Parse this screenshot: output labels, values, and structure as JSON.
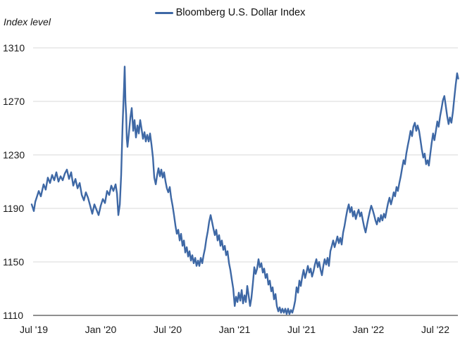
{
  "header": {
    "y_axis_title": "Index level"
  },
  "legend": {
    "label": "Bloomberg U.S. Dollar Index",
    "color": "#3e68a5"
  },
  "chart_data": {
    "type": "line",
    "title": "",
    "ylabel": "Index level",
    "xlabel": "",
    "legend_position": "top-center",
    "grid": "horizontal",
    "ylim": [
      1110,
      1310
    ],
    "xlim_months_since_jul_2019": [
      -0.3,
      38.2
    ],
    "y_ticks": [
      1310,
      1270,
      1230,
      1190,
      1150,
      1110
    ],
    "x_ticks": [
      {
        "m": 0,
        "label": "Jul '19"
      },
      {
        "m": 6,
        "label": "Jan '20"
      },
      {
        "m": 12,
        "label": "Jul '20"
      },
      {
        "m": 18,
        "label": "Jan '21"
      },
      {
        "m": 24,
        "label": "Jul '21"
      },
      {
        "m": 30,
        "label": "Jan '22"
      },
      {
        "m": 36,
        "label": "Jul '22"
      }
    ],
    "colors": {
      "line": "#3e68a5",
      "grid": "#d9d9d9",
      "axis": "#8f8f8f",
      "text": "#1a1a1a",
      "background": "#ffffff"
    },
    "series": [
      {
        "name": "Bloomberg U.S. Dollar Index",
        "color": "#3e68a5",
        "x_unit": "months since Jul 2019",
        "points": [
          [
            -0.19,
            1193
          ],
          [
            0.0,
            1188
          ],
          [
            0.13,
            1195
          ],
          [
            0.25,
            1198
          ],
          [
            0.44,
            1203
          ],
          [
            0.63,
            1199
          ],
          [
            0.88,
            1208
          ],
          [
            1.07,
            1204
          ],
          [
            1.26,
            1213
          ],
          [
            1.45,
            1209
          ],
          [
            1.64,
            1215
          ],
          [
            1.83,
            1211
          ],
          [
            2.02,
            1217
          ],
          [
            2.21,
            1210
          ],
          [
            2.4,
            1214
          ],
          [
            2.59,
            1211
          ],
          [
            2.78,
            1216
          ],
          [
            2.97,
            1219
          ],
          [
            3.16,
            1212
          ],
          [
            3.35,
            1217
          ],
          [
            3.54,
            1207
          ],
          [
            3.73,
            1212
          ],
          [
            3.92,
            1205
          ],
          [
            4.11,
            1209
          ],
          [
            4.3,
            1200
          ],
          [
            4.49,
            1196
          ],
          [
            4.67,
            1202
          ],
          [
            4.86,
            1198
          ],
          [
            5.05,
            1192
          ],
          [
            5.24,
            1186
          ],
          [
            5.43,
            1193
          ],
          [
            5.62,
            1189
          ],
          [
            5.81,
            1185
          ],
          [
            6.0,
            1192
          ],
          [
            6.19,
            1197
          ],
          [
            6.38,
            1194
          ],
          [
            6.57,
            1203
          ],
          [
            6.76,
            1200
          ],
          [
            6.95,
            1207
          ],
          [
            7.14,
            1203
          ],
          [
            7.33,
            1208
          ],
          [
            7.46,
            1201
          ],
          [
            7.58,
            1185
          ],
          [
            7.71,
            1193
          ],
          [
            7.83,
            1215
          ],
          [
            7.96,
            1252
          ],
          [
            8.09,
            1281
          ],
          [
            8.15,
            1296
          ],
          [
            8.22,
            1270
          ],
          [
            8.28,
            1260
          ],
          [
            8.34,
            1242
          ],
          [
            8.4,
            1236
          ],
          [
            8.53,
            1247
          ],
          [
            8.66,
            1258
          ],
          [
            8.78,
            1265
          ],
          [
            8.91,
            1248
          ],
          [
            9.03,
            1256
          ],
          [
            9.16,
            1243
          ],
          [
            9.29,
            1252
          ],
          [
            9.41,
            1246
          ],
          [
            9.54,
            1256
          ],
          [
            9.67,
            1249
          ],
          [
            9.79,
            1242
          ],
          [
            9.92,
            1247
          ],
          [
            10.04,
            1240
          ],
          [
            10.17,
            1245
          ],
          [
            10.3,
            1240
          ],
          [
            10.42,
            1246
          ],
          [
            10.55,
            1238
          ],
          [
            10.68,
            1228
          ],
          [
            10.8,
            1213
          ],
          [
            10.93,
            1208
          ],
          [
            11.06,
            1215
          ],
          [
            11.18,
            1220
          ],
          [
            11.31,
            1214
          ],
          [
            11.43,
            1219
          ],
          [
            11.56,
            1213
          ],
          [
            11.68,
            1217
          ],
          [
            11.81,
            1210
          ],
          [
            11.93,
            1205
          ],
          [
            12.06,
            1202
          ],
          [
            12.19,
            1206
          ],
          [
            12.31,
            1198
          ],
          [
            12.44,
            1192
          ],
          [
            12.57,
            1185
          ],
          [
            12.7,
            1177
          ],
          [
            12.82,
            1171
          ],
          [
            12.95,
            1174
          ],
          [
            13.08,
            1166
          ],
          [
            13.2,
            1171
          ],
          [
            13.33,
            1162
          ],
          [
            13.46,
            1166
          ],
          [
            13.58,
            1157
          ],
          [
            13.71,
            1161
          ],
          [
            13.84,
            1154
          ],
          [
            13.96,
            1158
          ],
          [
            14.09,
            1151
          ],
          [
            14.21,
            1155
          ],
          [
            14.34,
            1149
          ],
          [
            14.47,
            1153
          ],
          [
            14.59,
            1147
          ],
          [
            14.72,
            1151
          ],
          [
            14.84,
            1147
          ],
          [
            14.97,
            1153
          ],
          [
            15.1,
            1149
          ],
          [
            15.22,
            1155
          ],
          [
            15.35,
            1160
          ],
          [
            15.47,
            1167
          ],
          [
            15.6,
            1173
          ],
          [
            15.72,
            1180
          ],
          [
            15.85,
            1185
          ],
          [
            15.98,
            1180
          ],
          [
            16.1,
            1175
          ],
          [
            16.23,
            1170
          ],
          [
            16.36,
            1174
          ],
          [
            16.48,
            1166
          ],
          [
            16.61,
            1170
          ],
          [
            16.74,
            1162
          ],
          [
            16.86,
            1166
          ],
          [
            16.99,
            1159
          ],
          [
            17.12,
            1162
          ],
          [
            17.24,
            1155
          ],
          [
            17.37,
            1158
          ],
          [
            17.5,
            1149
          ],
          [
            17.62,
            1144
          ],
          [
            17.75,
            1137
          ],
          [
            17.88,
            1130
          ],
          [
            18.01,
            1117
          ],
          [
            18.13,
            1124
          ],
          [
            18.26,
            1120
          ],
          [
            18.38,
            1127
          ],
          [
            18.51,
            1121
          ],
          [
            18.64,
            1129
          ],
          [
            18.76,
            1119
          ],
          [
            18.89,
            1125
          ],
          [
            19.01,
            1120
          ],
          [
            19.14,
            1132
          ],
          [
            19.26,
            1125
          ],
          [
            19.39,
            1117
          ],
          [
            19.51,
            1123
          ],
          [
            19.64,
            1134
          ],
          [
            19.77,
            1146
          ],
          [
            19.89,
            1141
          ],
          [
            20.02,
            1145
          ],
          [
            20.15,
            1152
          ],
          [
            20.27,
            1146
          ],
          [
            20.4,
            1149
          ],
          [
            20.53,
            1142
          ],
          [
            20.65,
            1145
          ],
          [
            20.78,
            1138
          ],
          [
            20.91,
            1141
          ],
          [
            21.03,
            1133
          ],
          [
            21.16,
            1136
          ],
          [
            21.29,
            1128
          ],
          [
            21.41,
            1131
          ],
          [
            21.54,
            1122
          ],
          [
            21.67,
            1126
          ],
          [
            21.79,
            1117
          ],
          [
            21.92,
            1113
          ],
          [
            22.04,
            1116
          ],
          [
            22.17,
            1112
          ],
          [
            22.29,
            1115
          ],
          [
            22.42,
            1112
          ],
          [
            22.55,
            1115
          ],
          [
            22.67,
            1111
          ],
          [
            22.8,
            1115
          ],
          [
            22.92,
            1111
          ],
          [
            23.05,
            1114
          ],
          [
            23.18,
            1112
          ],
          [
            23.31,
            1116
          ],
          [
            23.43,
            1121
          ],
          [
            23.56,
            1131
          ],
          [
            23.69,
            1127
          ],
          [
            23.81,
            1136
          ],
          [
            23.94,
            1132
          ],
          [
            24.07,
            1139
          ],
          [
            24.19,
            1144
          ],
          [
            24.32,
            1138
          ],
          [
            24.44,
            1142
          ],
          [
            24.57,
            1147
          ],
          [
            24.7,
            1142
          ],
          [
            24.82,
            1145
          ],
          [
            24.95,
            1139
          ],
          [
            25.08,
            1143
          ],
          [
            25.2,
            1148
          ],
          [
            25.33,
            1152
          ],
          [
            25.46,
            1146
          ],
          [
            25.58,
            1150
          ],
          [
            25.71,
            1144
          ],
          [
            25.83,
            1140
          ],
          [
            25.96,
            1147
          ],
          [
            26.08,
            1152
          ],
          [
            26.21,
            1148
          ],
          [
            26.34,
            1153
          ],
          [
            26.46,
            1147
          ],
          [
            26.59,
            1158
          ],
          [
            26.72,
            1162
          ],
          [
            26.84,
            1166
          ],
          [
            26.97,
            1161
          ],
          [
            27.1,
            1165
          ],
          [
            27.22,
            1169
          ],
          [
            27.35,
            1164
          ],
          [
            27.48,
            1168
          ],
          [
            27.6,
            1163
          ],
          [
            27.73,
            1172
          ],
          [
            27.86,
            1177
          ],
          [
            27.98,
            1183
          ],
          [
            28.11,
            1189
          ],
          [
            28.24,
            1193
          ],
          [
            28.36,
            1187
          ],
          [
            28.49,
            1191
          ],
          [
            28.62,
            1184
          ],
          [
            28.74,
            1188
          ],
          [
            28.87,
            1182
          ],
          [
            28.99,
            1186
          ],
          [
            29.12,
            1189
          ],
          [
            29.25,
            1184
          ],
          [
            29.37,
            1187
          ],
          [
            29.5,
            1181
          ],
          [
            29.62,
            1176
          ],
          [
            29.75,
            1172
          ],
          [
            29.88,
            1178
          ],
          [
            30.0,
            1183
          ],
          [
            30.13,
            1188
          ],
          [
            30.25,
            1192
          ],
          [
            30.38,
            1189
          ],
          [
            30.51,
            1185
          ],
          [
            30.63,
            1181
          ],
          [
            30.76,
            1178
          ],
          [
            30.88,
            1183
          ],
          [
            31.01,
            1180
          ],
          [
            31.13,
            1185
          ],
          [
            31.26,
            1181
          ],
          [
            31.39,
            1186
          ],
          [
            31.51,
            1183
          ],
          [
            31.64,
            1189
          ],
          [
            31.76,
            1194
          ],
          [
            31.89,
            1198
          ],
          [
            32.02,
            1193
          ],
          [
            32.14,
            1197
          ],
          [
            32.27,
            1202
          ],
          [
            32.39,
            1199
          ],
          [
            32.52,
            1206
          ],
          [
            32.64,
            1203
          ],
          [
            32.77,
            1209
          ],
          [
            32.9,
            1214
          ],
          [
            33.02,
            1220
          ],
          [
            33.15,
            1226
          ],
          [
            33.27,
            1223
          ],
          [
            33.4,
            1231
          ],
          [
            33.53,
            1237
          ],
          [
            33.65,
            1242
          ],
          [
            33.78,
            1248
          ],
          [
            33.91,
            1244
          ],
          [
            34.03,
            1251
          ],
          [
            34.16,
            1254
          ],
          [
            34.29,
            1248
          ],
          [
            34.41,
            1252
          ],
          [
            34.54,
            1248
          ],
          [
            34.67,
            1241
          ],
          [
            34.79,
            1234
          ],
          [
            34.92,
            1228
          ],
          [
            35.04,
            1231
          ],
          [
            35.17,
            1223
          ],
          [
            35.3,
            1226
          ],
          [
            35.42,
            1222
          ],
          [
            35.55,
            1231
          ],
          [
            35.67,
            1239
          ],
          [
            35.8,
            1246
          ],
          [
            35.92,
            1241
          ],
          [
            36.05,
            1248
          ],
          [
            36.18,
            1255
          ],
          [
            36.3,
            1251
          ],
          [
            36.43,
            1259
          ],
          [
            36.56,
            1265
          ],
          [
            36.68,
            1271
          ],
          [
            36.81,
            1274
          ],
          [
            36.93,
            1267
          ],
          [
            37.06,
            1259
          ],
          [
            37.19,
            1253
          ],
          [
            37.31,
            1258
          ],
          [
            37.44,
            1254
          ],
          [
            37.57,
            1262
          ],
          [
            37.69,
            1272
          ],
          [
            37.82,
            1282
          ],
          [
            37.95,
            1291
          ],
          [
            38.05,
            1287
          ]
        ]
      }
    ]
  }
}
